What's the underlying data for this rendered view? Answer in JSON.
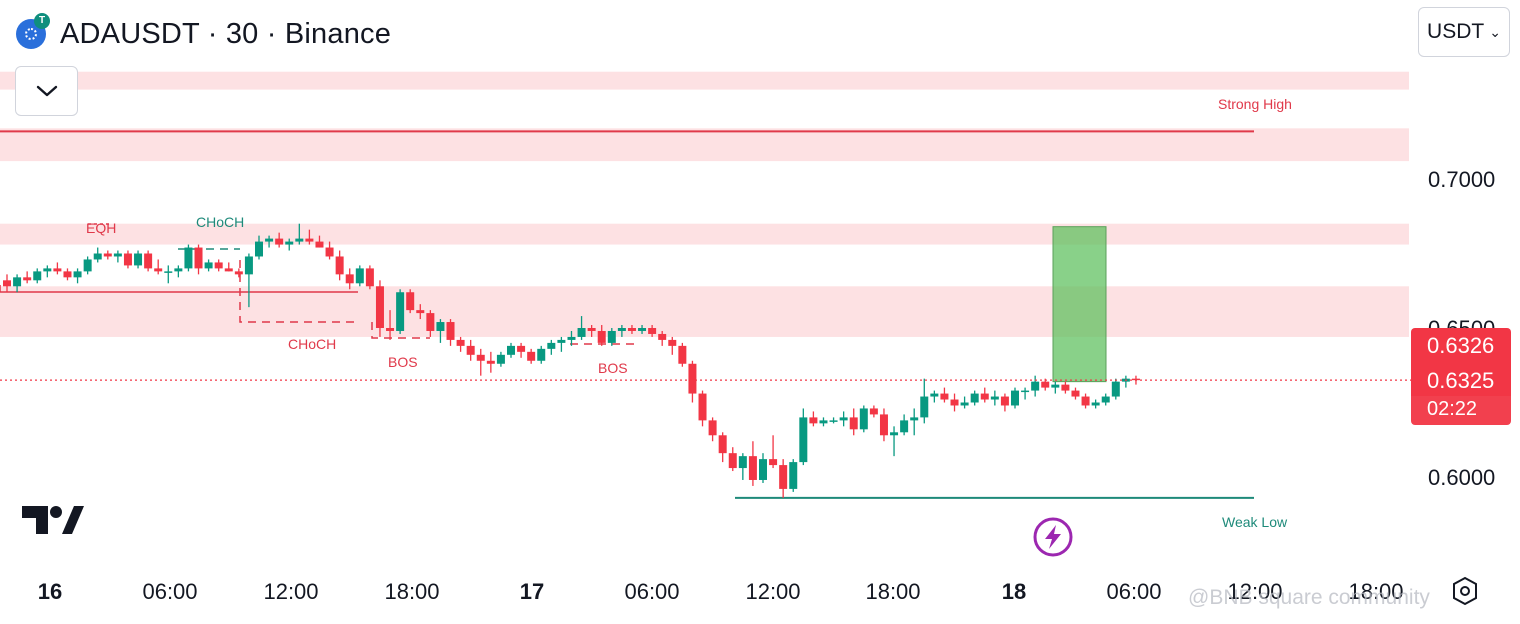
{
  "header": {
    "title": "ADAUSDT · 30 · Binance",
    "currency": "USDT",
    "badge_glyph": "T"
  },
  "icons": {
    "collapse": "chevron-down-icon",
    "logo": "tradingview-logo",
    "bolt": "lightning-icon",
    "settings": "hexagon-settings-icon"
  },
  "price_labels": {
    "last_price": "0.6326",
    "current_price": "0.6325",
    "countdown": "02:22"
  },
  "watermark": "@BNB square community",
  "colors": {
    "up": "#089981",
    "down": "#f23645",
    "zone": "#fde1e3",
    "target": "#5cbf5c"
  },
  "chart_data": {
    "type": "candlestick",
    "symbol": "ADAUSDT",
    "interval": "30",
    "exchange": "Binance",
    "y_axis": {
      "ticks": [
        "0.6000",
        "0.6500",
        "0.7000"
      ],
      "range": [
        0.575,
        0.737
      ]
    },
    "x_axis": {
      "ticks": [
        "16",
        "06:00",
        "12:00",
        "18:00",
        "17",
        "06:00",
        "12:00",
        "18:00",
        "18",
        "06:00",
        "12:00",
        "18:00"
      ],
      "bold": [
        "16",
        "17",
        "18"
      ]
    },
    "candles": [
      [
        0.666,
        0.668,
        0.662,
        0.664
      ],
      [
        0.664,
        0.668,
        0.662,
        0.667
      ],
      [
        0.667,
        0.669,
        0.665,
        0.666
      ],
      [
        0.666,
        0.67,
        0.665,
        0.669
      ],
      [
        0.669,
        0.671,
        0.667,
        0.67
      ],
      [
        0.67,
        0.672,
        0.668,
        0.669
      ],
      [
        0.669,
        0.67,
        0.666,
        0.667
      ],
      [
        0.667,
        0.67,
        0.665,
        0.669
      ],
      [
        0.669,
        0.674,
        0.668,
        0.673
      ],
      [
        0.673,
        0.677,
        0.672,
        0.675
      ],
      [
        0.675,
        0.676,
        0.673,
        0.674
      ],
      [
        0.674,
        0.676,
        0.672,
        0.675
      ],
      [
        0.675,
        0.676,
        0.67,
        0.671
      ],
      [
        0.671,
        0.676,
        0.67,
        0.675
      ],
      [
        0.675,
        0.676,
        0.669,
        0.67
      ],
      [
        0.67,
        0.673,
        0.668,
        0.669
      ],
      [
        0.669,
        0.671,
        0.665,
        0.669
      ],
      [
        0.669,
        0.671,
        0.667,
        0.67
      ],
      [
        0.67,
        0.678,
        0.669,
        0.677
      ],
      [
        0.677,
        0.678,
        0.668,
        0.67
      ],
      [
        0.67,
        0.673,
        0.669,
        0.672
      ],
      [
        0.672,
        0.673,
        0.669,
        0.67
      ],
      [
        0.67,
        0.672,
        0.669,
        0.669
      ],
      [
        0.669,
        0.67,
        0.667,
        0.668
      ],
      [
        0.668,
        0.675,
        0.657,
        0.674
      ],
      [
        0.674,
        0.681,
        0.673,
        0.679
      ],
      [
        0.679,
        0.681,
        0.677,
        0.68
      ],
      [
        0.68,
        0.682,
        0.677,
        0.678
      ],
      [
        0.678,
        0.68,
        0.676,
        0.679
      ],
      [
        0.679,
        0.685,
        0.678,
        0.68
      ],
      [
        0.68,
        0.683,
        0.678,
        0.679
      ],
      [
        0.679,
        0.681,
        0.677,
        0.677
      ],
      [
        0.677,
        0.679,
        0.673,
        0.674
      ],
      [
        0.674,
        0.676,
        0.666,
        0.668
      ],
      [
        0.668,
        0.67,
        0.663,
        0.665
      ],
      [
        0.665,
        0.671,
        0.664,
        0.67
      ],
      [
        0.67,
        0.671,
        0.663,
        0.664
      ],
      [
        0.664,
        0.666,
        0.647,
        0.65
      ],
      [
        0.65,
        0.656,
        0.646,
        0.649
      ],
      [
        0.649,
        0.663,
        0.648,
        0.662
      ],
      [
        0.662,
        0.663,
        0.655,
        0.656
      ],
      [
        0.656,
        0.658,
        0.653,
        0.655
      ],
      [
        0.655,
        0.656,
        0.647,
        0.649
      ],
      [
        0.649,
        0.653,
        0.645,
        0.652
      ],
      [
        0.652,
        0.653,
        0.644,
        0.646
      ],
      [
        0.646,
        0.647,
        0.642,
        0.644
      ],
      [
        0.644,
        0.646,
        0.639,
        0.641
      ],
      [
        0.641,
        0.643,
        0.634,
        0.639
      ],
      [
        0.639,
        0.642,
        0.635,
        0.638
      ],
      [
        0.638,
        0.642,
        0.637,
        0.641
      ],
      [
        0.641,
        0.645,
        0.64,
        0.644
      ],
      [
        0.644,
        0.645,
        0.64,
        0.642
      ],
      [
        0.642,
        0.643,
        0.638,
        0.639
      ],
      [
        0.639,
        0.644,
        0.638,
        0.643
      ],
      [
        0.643,
        0.646,
        0.641,
        0.645
      ],
      [
        0.645,
        0.647,
        0.642,
        0.646
      ],
      [
        0.646,
        0.649,
        0.644,
        0.647
      ],
      [
        0.647,
        0.654,
        0.646,
        0.65
      ],
      [
        0.65,
        0.651,
        0.647,
        0.649
      ],
      [
        0.649,
        0.651,
        0.644,
        0.645
      ],
      [
        0.645,
        0.65,
        0.644,
        0.649
      ],
      [
        0.649,
        0.651,
        0.647,
        0.65
      ],
      [
        0.65,
        0.651,
        0.648,
        0.649
      ],
      [
        0.649,
        0.651,
        0.648,
        0.65
      ],
      [
        0.65,
        0.651,
        0.647,
        0.648
      ],
      [
        0.648,
        0.649,
        0.644,
        0.646
      ],
      [
        0.646,
        0.647,
        0.641,
        0.644
      ],
      [
        0.644,
        0.645,
        0.637,
        0.638
      ],
      [
        0.638,
        0.639,
        0.625,
        0.628
      ],
      [
        0.628,
        0.629,
        0.617,
        0.619
      ],
      [
        0.619,
        0.62,
        0.612,
        0.614
      ],
      [
        0.614,
        0.615,
        0.605,
        0.608
      ],
      [
        0.608,
        0.61,
        0.602,
        0.603
      ],
      [
        0.603,
        0.608,
        0.599,
        0.607
      ],
      [
        0.607,
        0.612,
        0.597,
        0.599
      ],
      [
        0.599,
        0.608,
        0.598,
        0.606
      ],
      [
        0.606,
        0.614,
        0.603,
        0.604
      ],
      [
        0.604,
        0.606,
        0.593,
        0.596
      ],
      [
        0.596,
        0.606,
        0.595,
        0.605
      ],
      [
        0.605,
        0.623,
        0.604,
        0.62
      ],
      [
        0.62,
        0.622,
        0.617,
        0.618
      ],
      [
        0.618,
        0.62,
        0.617,
        0.619
      ],
      [
        0.619,
        0.62,
        0.618,
        0.619
      ],
      [
        0.619,
        0.622,
        0.617,
        0.62
      ],
      [
        0.62,
        0.623,
        0.614,
        0.616
      ],
      [
        0.616,
        0.624,
        0.615,
        0.623
      ],
      [
        0.623,
        0.624,
        0.62,
        0.621
      ],
      [
        0.621,
        0.623,
        0.612,
        0.614
      ],
      [
        0.614,
        0.617,
        0.607,
        0.615
      ],
      [
        0.615,
        0.621,
        0.614,
        0.619
      ],
      [
        0.619,
        0.623,
        0.614,
        0.62
      ],
      [
        0.62,
        0.633,
        0.618,
        0.627
      ],
      [
        0.627,
        0.629,
        0.625,
        0.628
      ],
      [
        0.628,
        0.63,
        0.625,
        0.626
      ],
      [
        0.626,
        0.628,
        0.622,
        0.624
      ],
      [
        0.624,
        0.627,
        0.623,
        0.625
      ],
      [
        0.625,
        0.629,
        0.624,
        0.628
      ],
      [
        0.628,
        0.63,
        0.625,
        0.626
      ],
      [
        0.626,
        0.629,
        0.624,
        0.627
      ],
      [
        0.627,
        0.628,
        0.622,
        0.624
      ],
      [
        0.624,
        0.63,
        0.623,
        0.629
      ],
      [
        0.629,
        0.63,
        0.626,
        0.629
      ],
      [
        0.629,
        0.634,
        0.627,
        0.632
      ],
      [
        0.632,
        0.633,
        0.629,
        0.63
      ],
      [
        0.63,
        0.632,
        0.628,
        0.631
      ],
      [
        0.631,
        0.632,
        0.628,
        0.629
      ],
      [
        0.629,
        0.63,
        0.626,
        0.627
      ],
      [
        0.627,
        0.628,
        0.623,
        0.624
      ],
      [
        0.624,
        0.626,
        0.623,
        0.625
      ],
      [
        0.625,
        0.628,
        0.624,
        0.627
      ],
      [
        0.627,
        0.633,
        0.626,
        0.632
      ],
      [
        0.632,
        0.634,
        0.63,
        0.633
      ],
      [
        0.633,
        0.634,
        0.631,
        0.6325
      ]
    ],
    "zones": [
      {
        "type": "supply",
        "top": 0.736,
        "bottom": 0.73
      },
      {
        "type": "supply",
        "top": 0.717,
        "bottom": 0.706
      },
      {
        "type": "supply",
        "top": 0.685,
        "bottom": 0.678
      },
      {
        "type": "supply",
        "top": 0.664,
        "bottom": 0.647
      },
      {
        "type": "supply",
        "top": 0.652,
        "bottom": 0.649
      }
    ],
    "target_box": {
      "top": 0.684,
      "bottom": 0.632
    },
    "current_price_line": 0.6325,
    "structure": {
      "strong_high": {
        "label": "Strong High",
        "value": 0.716
      },
      "weak_low": {
        "label": "Weak Low",
        "value": 0.593
      },
      "labels": [
        "EQH",
        "CHoCH",
        "CHoCH",
        "BOS",
        "BOS"
      ]
    }
  }
}
